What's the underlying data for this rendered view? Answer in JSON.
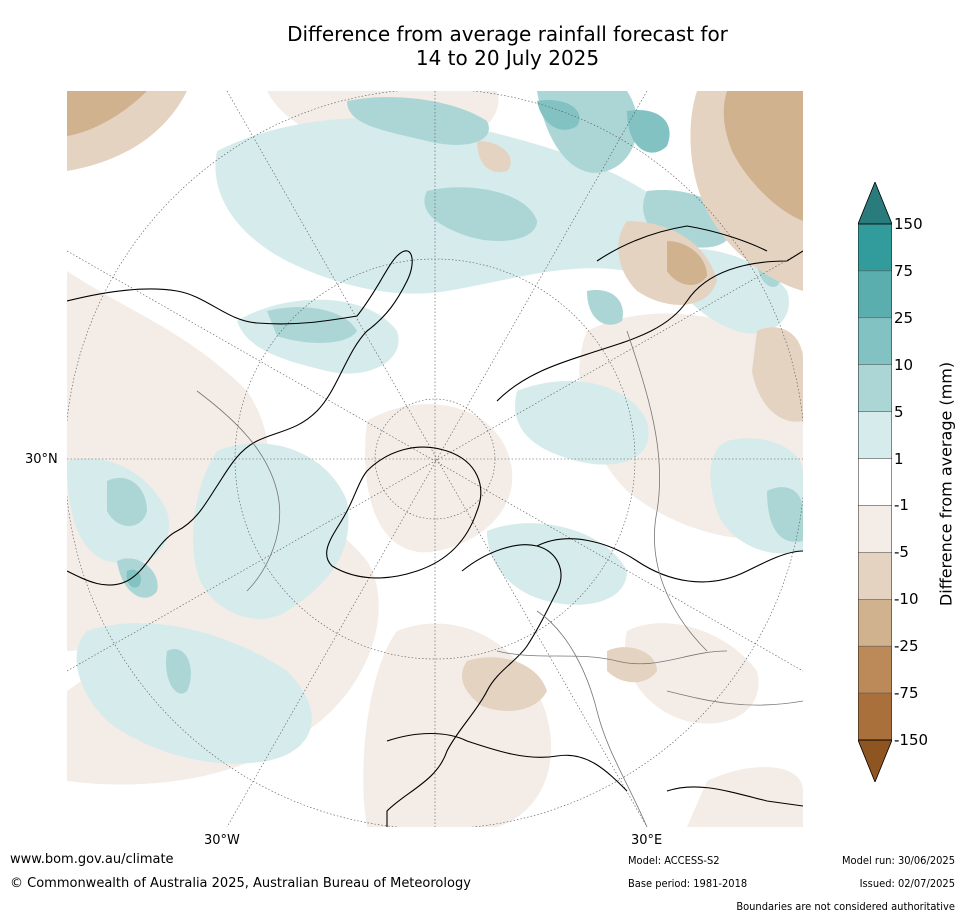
{
  "title_line1": "Difference from average rainfall forecast for",
  "title_line2": "14 to 20 July 2025",
  "map": {
    "lat_label": "30°N",
    "lon_labels": [
      "30°W",
      "30°E"
    ]
  },
  "colorbar": {
    "title": "Difference from average (mm)",
    "ticks": [
      "150",
      "75",
      "25",
      "10",
      "5",
      "1",
      "-1",
      "-5",
      "-10",
      "-25",
      "-75",
      "-150"
    ],
    "colors": [
      "#2a7c7c",
      "#329b9b",
      "#5aaeae",
      "#83c2c2",
      "#acd6d6",
      "#d6ebeb",
      "#ffffff",
      "#f4ece6",
      "#e5d3c2",
      "#d0b28f",
      "#bc8a59",
      "#a9703b",
      "#8e5520"
    ]
  },
  "footer": {
    "website": "www.bom.gov.au/climate",
    "copyright": "© Commonwealth of Australia 2025, Australian Bureau of Meteorology",
    "model": "Model: ACCESS-S2",
    "base_period": "Base period: 1981-2018",
    "model_run": "Model run: 30/06/2025",
    "issued": "Issued: 02/07/2025",
    "disclaimer": "Boundaries are not considered authoritative"
  }
}
